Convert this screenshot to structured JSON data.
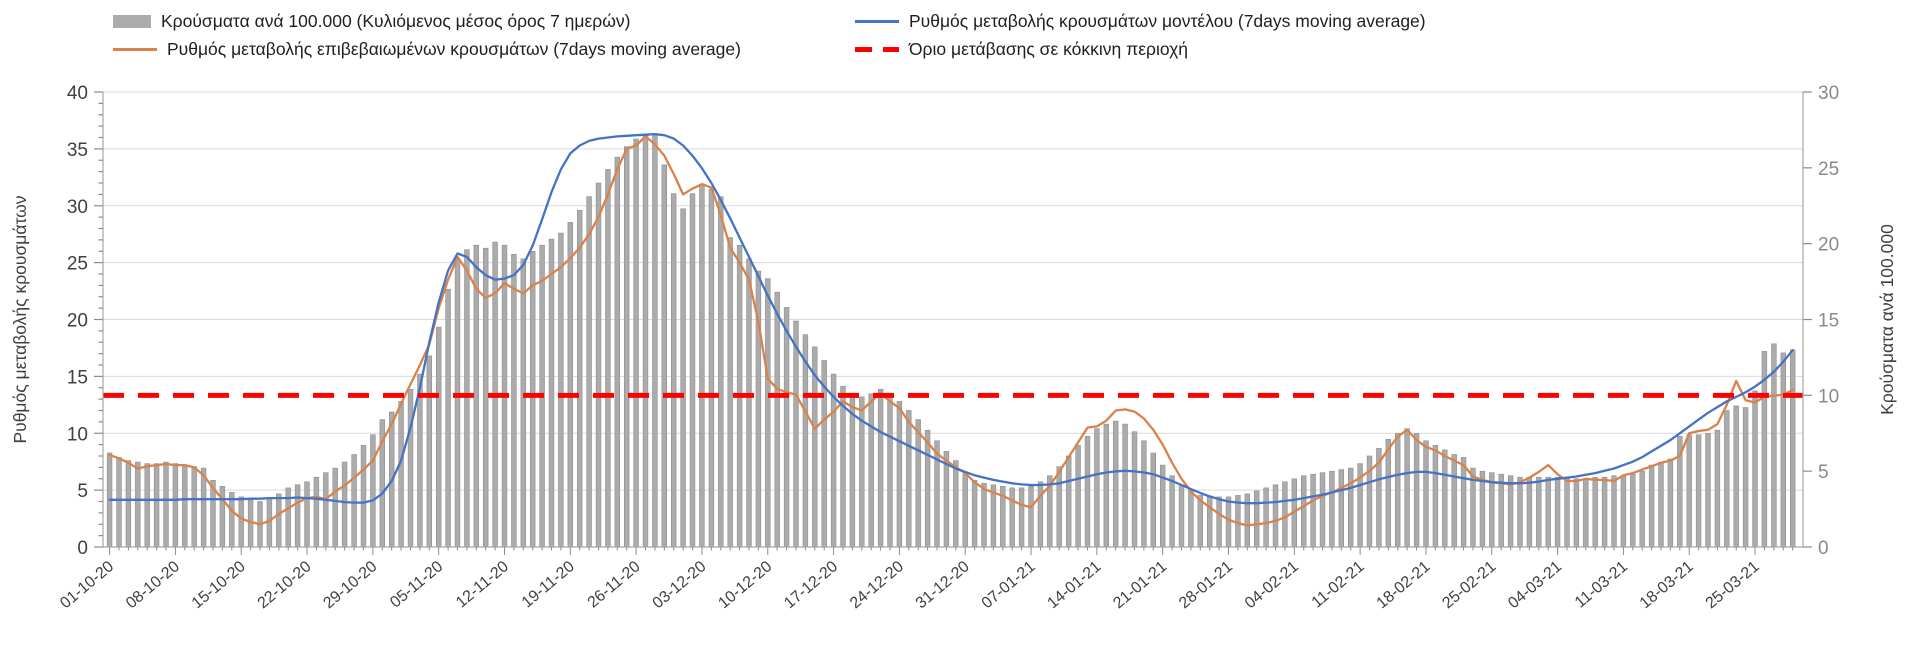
{
  "legend": {
    "items": [
      {
        "label": "Κρούσματα ανά 100.000 (Κυλιόμενος μέσος όρος 7 ημερών)",
        "swatch": "bar",
        "color": "#ABABAB"
      },
      {
        "label": "Ρυθμός μεταβολής κρουσμάτων μοντέλου (7days moving average)",
        "swatch": "line",
        "color": "#4472C4"
      },
      {
        "label": "Ρυθμός μεταβολής επιβεβαιωμένων κρουσμάτων (7days moving average)",
        "swatch": "line",
        "color": "#D9824A"
      },
      {
        "label": "Όριο μετάβασης σε κόκκινη περιοχή",
        "swatch": "dash",
        "color": "#FF0000"
      }
    ]
  },
  "chart_data": {
    "type": "combo",
    "title": "",
    "n_days": 180,
    "grid": "horizontal gridlines every 5 left-axis units, color #D9D9D9",
    "axis_left": {
      "title": "Ρυθμός μεταβολής κρουσμάτων",
      "min": 0,
      "max": 40,
      "major": 5,
      "minor": 1,
      "tick_label_color": "#404040"
    },
    "axis_right": {
      "title": "Κρούσματα ανά 100.000",
      "min": 0,
      "max": 30,
      "major": 5,
      "tick_label_color": "#8a8a8a"
    },
    "x_tick_labels": [
      "01-10-20",
      "08-10-20",
      "15-10-20",
      "22-10-20",
      "29-10-20",
      "05-11-20",
      "12-11-20",
      "19-11-20",
      "26-11-20",
      "03-12-20",
      "10-12-20",
      "17-12-20",
      "24-12-20",
      "31-12-20",
      "07-01-21",
      "14-01-21",
      "21-01-21",
      "28-01-21",
      "04-02-21",
      "11-02-21",
      "18-02-21",
      "25-02-21",
      "04-03-21",
      "11-03-21",
      "18-03-21",
      "25-03-21"
    ],
    "x_tick_day_index": [
      0,
      7,
      14,
      21,
      28,
      35,
      42,
      49,
      56,
      63,
      70,
      77,
      84,
      91,
      98,
      105,
      112,
      119,
      126,
      133,
      140,
      147,
      154,
      161,
      168,
      175
    ],
    "threshold": {
      "label": "Όριο μετάβασης σε κόκκινη περιοχή",
      "axis": "right",
      "value": 10,
      "color": "#FF0000",
      "style": "dashed"
    },
    "series": [
      {
        "name": "Κρούσματα ανά 100.000 (Κυλιόμενος μέσος όρος 7 ημερών)",
        "type": "bar",
        "axis": "right",
        "color": "#ABABAB",
        "edge": "#8F8F8F",
        "values": [
          6.2,
          5.9,
          5.7,
          5.6,
          5.5,
          5.5,
          5.6,
          5.5,
          5.4,
          5.3,
          5.2,
          4.4,
          4.0,
          3.6,
          3.3,
          3.1,
          3.0,
          3.2,
          3.5,
          3.9,
          4.1,
          4.3,
          4.6,
          4.9,
          5.2,
          5.6,
          6.1,
          6.7,
          7.4,
          8.4,
          8.9,
          9.6,
          10.4,
          11.4,
          12.6,
          14.5,
          17.0,
          19.0,
          19.6,
          19.9,
          19.7,
          20.1,
          19.9,
          19.3,
          19.0,
          19.5,
          19.9,
          20.3,
          20.7,
          21.4,
          22.2,
          23.1,
          24.0,
          24.9,
          25.7,
          26.4,
          26.9,
          27.2,
          27.2,
          25.2,
          23.3,
          22.3,
          23.3,
          23.9,
          23.6,
          23.1,
          20.4,
          19.9,
          19.0,
          18.2,
          17.7,
          16.8,
          15.8,
          14.9,
          14.0,
          13.2,
          12.3,
          11.4,
          10.6,
          10.1,
          9.9,
          10.1,
          10.4,
          10.0,
          9.6,
          9.0,
          8.4,
          7.7,
          7.0,
          6.3,
          5.7,
          4.8,
          4.4,
          4.2,
          4.1,
          4.0,
          3.9,
          3.9,
          4.0,
          4.3,
          4.7,
          5.3,
          6.0,
          6.7,
          7.3,
          7.8,
          8.1,
          8.3,
          8.1,
          7.6,
          7.0,
          6.2,
          5.4,
          4.7,
          4.1,
          3.7,
          3.4,
          3.3,
          3.3,
          3.3,
          3.4,
          3.5,
          3.7,
          3.9,
          4.1,
          4.3,
          4.5,
          4.7,
          4.8,
          4.9,
          5.0,
          5.1,
          5.2,
          5.5,
          6.0,
          6.5,
          7.1,
          7.5,
          7.8,
          7.5,
          7.0,
          6.7,
          6.4,
          6.1,
          5.9,
          5.2,
          5.0,
          4.9,
          4.8,
          4.7,
          4.6,
          4.6,
          4.6,
          4.6,
          4.6,
          4.5,
          4.5,
          4.5,
          4.6,
          4.6,
          4.7,
          4.7,
          4.8,
          5.0,
          5.4,
          5.6,
          5.8,
          7.3,
          7.4,
          7.4,
          7.5,
          7.7,
          9.0,
          9.3,
          9.2,
          10.3,
          12.9,
          13.4,
          12.8,
          13.0
        ]
      },
      {
        "name": "Ρυθμός μεταβολής επιβεβαιωμένων κρουσμάτων (7days moving average)",
        "type": "line",
        "axis": "left",
        "color": "#D9824A",
        "values": [
          8.1,
          7.8,
          7.4,
          6.9,
          7.1,
          7.2,
          7.3,
          7.2,
          7.2,
          7.0,
          6.3,
          5.2,
          4.2,
          3.2,
          2.5,
          2.2,
          2.0,
          2.3,
          2.9,
          3.4,
          3.9,
          4.3,
          4.4,
          4.2,
          4.9,
          5.4,
          6.1,
          6.8,
          7.6,
          9.3,
          10.8,
          12.6,
          14.3,
          16.0,
          17.8,
          21.0,
          23.5,
          25.5,
          24.3,
          22.7,
          21.9,
          22.3,
          23.2,
          22.7,
          22.3,
          23.0,
          23.4,
          24.0,
          24.6,
          25.4,
          26.3,
          27.5,
          29.0,
          31.0,
          33.2,
          35.0,
          35.3,
          36.1,
          35.4,
          34.4,
          32.8,
          31.0,
          31.5,
          31.9,
          31.6,
          29.2,
          26.3,
          25.0,
          23.5,
          19.8,
          14.8,
          13.9,
          13.6,
          13.4,
          11.9,
          10.4,
          11.2,
          11.9,
          12.8,
          12.3,
          12.0,
          12.8,
          13.5,
          12.8,
          12.2,
          11.0,
          10.1,
          9.2,
          8.2,
          7.6,
          7.0,
          6.5,
          5.7,
          5.1,
          4.8,
          4.5,
          4.1,
          3.7,
          3.5,
          4.5,
          5.4,
          6.6,
          7.9,
          9.2,
          10.5,
          10.6,
          11.1,
          12.0,
          12.1,
          11.9,
          11.3,
          10.3,
          9.0,
          7.4,
          6.0,
          4.9,
          4.1,
          3.5,
          2.9,
          2.4,
          2.1,
          1.9,
          2.0,
          2.1,
          2.3,
          2.6,
          3.1,
          3.6,
          4.1,
          4.5,
          4.8,
          5.2,
          5.6,
          6.1,
          6.7,
          7.4,
          8.6,
          9.7,
          10.3,
          9.4,
          8.8,
          8.5,
          8.0,
          7.6,
          7.2,
          6.2,
          5.9,
          5.7,
          5.6,
          5.5,
          5.7,
          6.1,
          6.6,
          7.2,
          6.4,
          5.8,
          5.8,
          6.0,
          5.9,
          5.9,
          5.8,
          6.3,
          6.5,
          6.8,
          7.1,
          7.4,
          7.6,
          8.0,
          10.0,
          10.2,
          10.3,
          10.8,
          12.5,
          14.6,
          12.9,
          12.7,
          13.2,
          13.3,
          13.4,
          13.8
        ]
      },
      {
        "name": "Ρυθμός μεταβολής κρουσμάτων μοντέλου (7days moving average)",
        "type": "line",
        "axis": "left",
        "color": "#4472C4",
        "values": [
          4.15,
          4.15,
          4.15,
          4.15,
          4.15,
          4.15,
          4.15,
          4.15,
          4.2,
          4.2,
          4.2,
          4.2,
          4.2,
          4.2,
          4.2,
          4.25,
          4.25,
          4.3,
          4.3,
          4.3,
          4.35,
          4.3,
          4.25,
          4.15,
          4.05,
          3.95,
          3.9,
          3.9,
          4.1,
          4.7,
          5.8,
          7.6,
          10.5,
          14.0,
          18.0,
          21.5,
          24.3,
          25.8,
          25.5,
          24.6,
          23.9,
          23.5,
          23.6,
          23.9,
          24.8,
          26.5,
          28.8,
          31.2,
          33.2,
          34.6,
          35.3,
          35.7,
          35.9,
          36.0,
          36.1,
          36.15,
          36.2,
          36.25,
          36.3,
          36.2,
          35.9,
          35.3,
          34.4,
          33.3,
          32.0,
          30.5,
          28.9,
          27.2,
          25.5,
          23.8,
          22.1,
          20.5,
          19.0,
          17.6,
          16.3,
          15.1,
          14.1,
          13.2,
          12.4,
          11.7,
          11.1,
          10.6,
          10.1,
          9.7,
          9.3,
          8.9,
          8.5,
          8.1,
          7.7,
          7.3,
          6.9,
          6.6,
          6.3,
          6.1,
          5.9,
          5.75,
          5.6,
          5.5,
          5.45,
          5.45,
          5.5,
          5.6,
          5.8,
          6.0,
          6.2,
          6.4,
          6.55,
          6.65,
          6.7,
          6.65,
          6.55,
          6.4,
          6.1,
          5.8,
          5.45,
          5.1,
          4.75,
          4.45,
          4.2,
          4.0,
          3.9,
          3.85,
          3.85,
          3.9,
          3.95,
          4.05,
          4.15,
          4.3,
          4.45,
          4.6,
          4.8,
          5.0,
          5.2,
          5.45,
          5.7,
          5.95,
          6.15,
          6.35,
          6.5,
          6.6,
          6.6,
          6.5,
          6.35,
          6.2,
          6.05,
          5.9,
          5.8,
          5.7,
          5.65,
          5.6,
          5.6,
          5.65,
          5.75,
          5.9,
          6.0,
          6.1,
          6.2,
          6.35,
          6.5,
          6.7,
          6.9,
          7.2,
          7.5,
          7.9,
          8.4,
          8.9,
          9.4,
          10.0,
          10.6,
          11.2,
          11.8,
          12.3,
          12.8,
          13.2,
          13.6,
          14.1,
          14.7,
          15.4,
          16.3,
          17.3
        ]
      }
    ]
  }
}
